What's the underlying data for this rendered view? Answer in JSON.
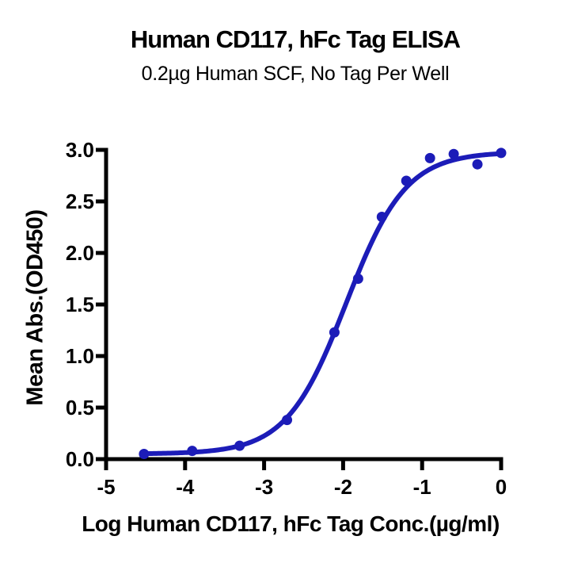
{
  "chart_data": {
    "type": "scatter",
    "title": "Human CD117, hFc Tag ELISA",
    "subtitle": "0.2µg Human SCF, No Tag Per Well",
    "xlabel": "Log Human CD117, hFc Tag Conc.(µg/ml)",
    "ylabel": "Mean Abs.(OD450)",
    "xlim": [
      -5,
      0
    ],
    "ylim": [
      0,
      3
    ],
    "x_ticks": [
      -5,
      -4,
      -3,
      -2,
      -1,
      0
    ],
    "x_tick_labels": [
      "-5",
      "-4",
      "-3",
      "-2",
      "-1",
      "0"
    ],
    "y_ticks": [
      0,
      0.5,
      1,
      1.5,
      2,
      2.5,
      3
    ],
    "y_tick_labels": [
      "0.0",
      "0.5",
      "1.0",
      "1.5",
      "2.0",
      "2.5",
      "3.0"
    ],
    "grid": false,
    "legend": "none",
    "series": [
      {
        "x": [
          -4.52,
          -3.91,
          -3.31,
          -2.71,
          -2.11,
          -1.81,
          -1.51,
          -1.2,
          -0.9,
          -0.6,
          -0.3,
          0.0
        ],
        "y": [
          0.05,
          0.08,
          0.13,
          0.38,
          1.23,
          1.75,
          2.35,
          2.7,
          2.92,
          2.96,
          2.86,
          2.97
        ]
      }
    ],
    "fit_curve": {
      "model": "4PL",
      "bottom": 0.05,
      "top": 2.98,
      "log_ec50": -1.96,
      "hill": 1.15
    },
    "colors": {
      "series": "#1C1CB8",
      "axis": "#000000",
      "text": "#000000"
    }
  }
}
